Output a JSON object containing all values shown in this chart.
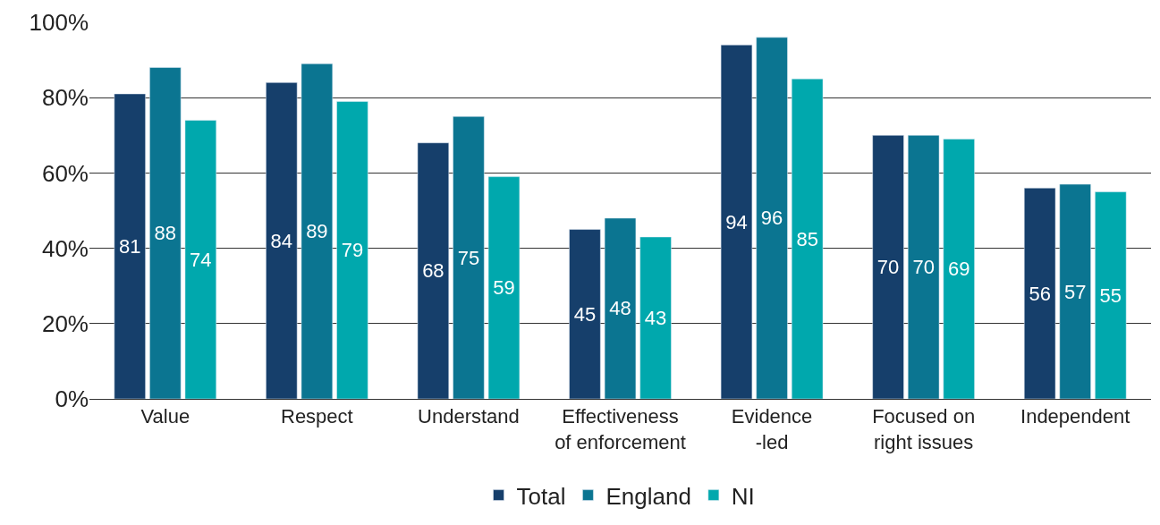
{
  "chart_data": {
    "type": "bar",
    "categories": [
      "Value",
      "Respect",
      "Understand",
      "Effectiveness\nof enforcement",
      "Evidence\n-led",
      "Focused on\nright issues",
      "Independent"
    ],
    "series": [
      {
        "name": "Total",
        "color": "#163f6b",
        "values": [
          81,
          84,
          68,
          45,
          94,
          70,
          56
        ]
      },
      {
        "name": "England",
        "color": "#0b7591",
        "values": [
          88,
          89,
          75,
          48,
          96,
          70,
          57
        ]
      },
      {
        "name": "NI",
        "color": "#00a8ad",
        "values": [
          74,
          79,
          59,
          43,
          85,
          69,
          55
        ]
      }
    ],
    "ylim": [
      0,
      100
    ],
    "yticks": [
      {
        "value": 0,
        "label": "0%"
      },
      {
        "value": 20,
        "label": "20%"
      },
      {
        "value": 40,
        "label": "40%"
      },
      {
        "value": 60,
        "label": "60%"
      },
      {
        "value": 80,
        "label": "80%"
      },
      {
        "value": 100,
        "label": "100%"
      }
    ],
    "grid": "y",
    "legend": "bottom",
    "data_labels": true
  }
}
